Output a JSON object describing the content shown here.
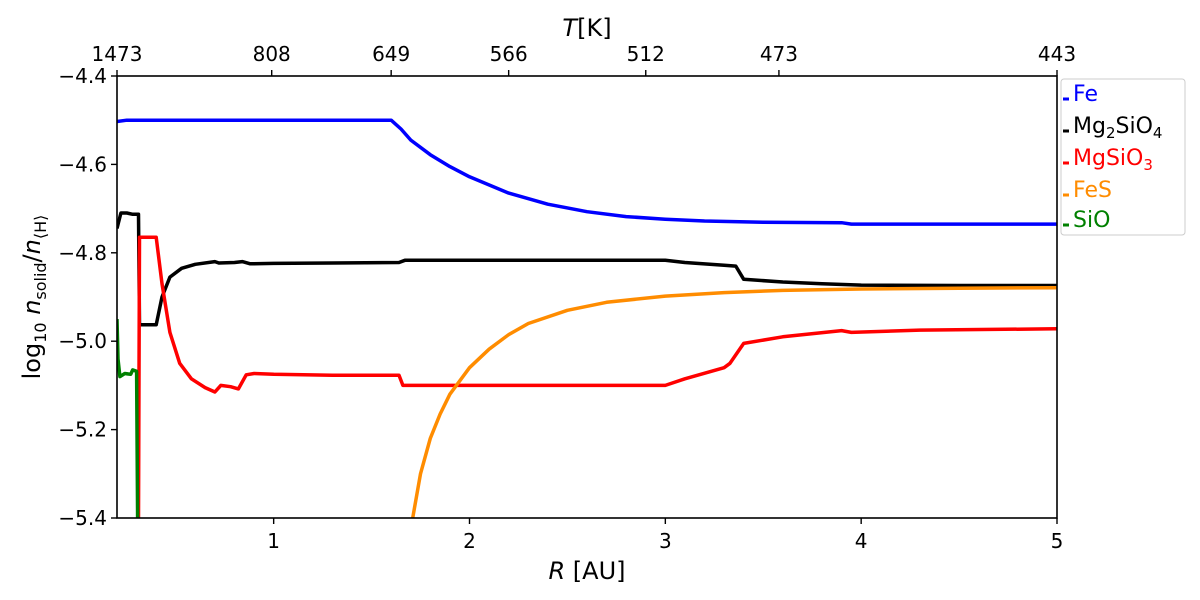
{
  "chart_data": {
    "type": "line",
    "xlabel_var": "R",
    "xlabel_unit": " [AU]",
    "ylabel_prefix": "log",
    "ylabel_sub10": "10",
    "ylabel_n1": " n",
    "ylabel_sub1": "solid",
    "ylabel_slash": "/",
    "ylabel_n2": "n",
    "ylabel_sub2": "⟨H⟩",
    "top_label_var": "T",
    "top_label_unit": "[K]",
    "xlim": [
      0.2,
      5.0
    ],
    "ylim": [
      -5.4,
      -4.4
    ],
    "x_ticks": [
      1,
      2,
      3,
      4,
      5
    ],
    "y_ticks": [
      -4.4,
      -4.6,
      -4.8,
      -5.0,
      -5.2,
      -5.4
    ],
    "y_tick_labels": [
      "−4.4",
      "−4.6",
      "−4.8",
      "−5.0",
      "−5.2",
      "−5.4"
    ],
    "top_ticks": [
      {
        "r": 0.2,
        "label": "1473"
      },
      {
        "r": 0.99,
        "label": "808"
      },
      {
        "r": 1.6,
        "label": "649"
      },
      {
        "r": 2.2,
        "label": "566"
      },
      {
        "r": 2.9,
        "label": "512"
      },
      {
        "r": 3.58,
        "label": "473"
      },
      {
        "r": 5.0,
        "label": "443"
      }
    ],
    "grid": false,
    "legend_position": "upper-right-outside",
    "series": [
      {
        "name": "Fe",
        "color": "#0000ff",
        "points": [
          [
            0.2,
            -4.503
          ],
          [
            0.25,
            -4.5
          ],
          [
            0.5,
            -4.5
          ],
          [
            1.0,
            -4.5
          ],
          [
            1.5,
            -4.5
          ],
          [
            1.6,
            -4.5
          ],
          [
            1.65,
            -4.52
          ],
          [
            1.7,
            -4.545
          ],
          [
            1.8,
            -4.578
          ],
          [
            1.9,
            -4.605
          ],
          [
            2.0,
            -4.628
          ],
          [
            2.2,
            -4.665
          ],
          [
            2.4,
            -4.69
          ],
          [
            2.6,
            -4.707
          ],
          [
            2.8,
            -4.718
          ],
          [
            3.0,
            -4.724
          ],
          [
            3.2,
            -4.728
          ],
          [
            3.5,
            -4.731
          ],
          [
            3.9,
            -4.732
          ],
          [
            3.95,
            -4.735
          ],
          [
            4.5,
            -4.735
          ],
          [
            5.0,
            -4.735
          ]
        ]
      },
      {
        "name": "Mg2SiO4",
        "color": "#000000",
        "points": [
          [
            0.2,
            -4.745
          ],
          [
            0.22,
            -4.71
          ],
          [
            0.25,
            -4.71
          ],
          [
            0.28,
            -4.713
          ],
          [
            0.31,
            -4.713
          ],
          [
            0.315,
            -4.963
          ],
          [
            0.4,
            -4.963
          ],
          [
            0.43,
            -4.9
          ],
          [
            0.47,
            -4.855
          ],
          [
            0.53,
            -4.835
          ],
          [
            0.6,
            -4.826
          ],
          [
            0.7,
            -4.82
          ],
          [
            0.72,
            -4.823
          ],
          [
            0.8,
            -4.822
          ],
          [
            0.84,
            -4.82
          ],
          [
            0.88,
            -4.825
          ],
          [
            1.0,
            -4.824
          ],
          [
            1.3,
            -4.823
          ],
          [
            1.64,
            -4.822
          ],
          [
            1.67,
            -4.817
          ],
          [
            2.0,
            -4.817
          ],
          [
            2.5,
            -4.817
          ],
          [
            3.0,
            -4.817
          ],
          [
            3.1,
            -4.822
          ],
          [
            3.3,
            -4.828
          ],
          [
            3.36,
            -4.83
          ],
          [
            3.4,
            -4.86
          ],
          [
            3.6,
            -4.866
          ],
          [
            3.8,
            -4.87
          ],
          [
            4.0,
            -4.873
          ],
          [
            4.5,
            -4.874
          ],
          [
            5.0,
            -4.874
          ]
        ]
      },
      {
        "name": "MgSiO3",
        "color": "#ff0000",
        "points": [
          [
            0.31,
            -5.4
          ],
          [
            0.315,
            -4.765
          ],
          [
            0.4,
            -4.765
          ],
          [
            0.43,
            -4.87
          ],
          [
            0.47,
            -4.98
          ],
          [
            0.52,
            -5.05
          ],
          [
            0.58,
            -5.085
          ],
          [
            0.65,
            -5.105
          ],
          [
            0.7,
            -5.115
          ],
          [
            0.73,
            -5.1
          ],
          [
            0.78,
            -5.103
          ],
          [
            0.82,
            -5.108
          ],
          [
            0.86,
            -5.076
          ],
          [
            0.9,
            -5.073
          ],
          [
            1.0,
            -5.075
          ],
          [
            1.3,
            -5.077
          ],
          [
            1.64,
            -5.077
          ],
          [
            1.66,
            -5.1
          ],
          [
            2.0,
            -5.1
          ],
          [
            2.5,
            -5.1
          ],
          [
            3.0,
            -5.1
          ],
          [
            3.1,
            -5.085
          ],
          [
            3.3,
            -5.06
          ],
          [
            3.33,
            -5.05
          ],
          [
            3.4,
            -5.005
          ],
          [
            3.6,
            -4.99
          ],
          [
            3.9,
            -4.976
          ],
          [
            3.95,
            -4.98
          ],
          [
            4.3,
            -4.975
          ],
          [
            5.0,
            -4.972
          ]
        ]
      },
      {
        "name": "FeS",
        "color": "#ff8c00",
        "points": [
          [
            1.71,
            -5.4
          ],
          [
            1.75,
            -5.3
          ],
          [
            1.8,
            -5.22
          ],
          [
            1.85,
            -5.165
          ],
          [
            1.9,
            -5.12
          ],
          [
            2.0,
            -5.06
          ],
          [
            2.1,
            -5.018
          ],
          [
            2.2,
            -4.985
          ],
          [
            2.3,
            -4.96
          ],
          [
            2.5,
            -4.93
          ],
          [
            2.7,
            -4.912
          ],
          [
            3.0,
            -4.898
          ],
          [
            3.3,
            -4.89
          ],
          [
            3.6,
            -4.885
          ],
          [
            4.0,
            -4.882
          ],
          [
            4.5,
            -4.88
          ],
          [
            5.0,
            -4.879
          ]
        ]
      },
      {
        "name": "SiO",
        "color": "#008000",
        "points": [
          [
            0.2,
            -4.95
          ],
          [
            0.205,
            -5.04
          ],
          [
            0.215,
            -5.08
          ],
          [
            0.24,
            -5.073
          ],
          [
            0.27,
            -5.075
          ],
          [
            0.28,
            -5.065
          ],
          [
            0.3,
            -5.068
          ],
          [
            0.305,
            -5.4
          ]
        ]
      }
    ]
  },
  "legend": [
    {
      "text": "Fe",
      "sub": "",
      "text2": "",
      "sub2": "",
      "color": "#0000ff"
    },
    {
      "text": "Mg",
      "sub": "2",
      "text2": "SiO",
      "sub2": "4",
      "color": "#000000"
    },
    {
      "text": "MgSiO",
      "sub": "3",
      "text2": "",
      "sub2": "",
      "color": "#ff0000"
    },
    {
      "text": "FeS",
      "sub": "",
      "text2": "",
      "sub2": "",
      "color": "#ff8c00"
    },
    {
      "text": "SiO",
      "sub": "",
      "text2": "",
      "sub2": "",
      "color": "#008000"
    }
  ]
}
